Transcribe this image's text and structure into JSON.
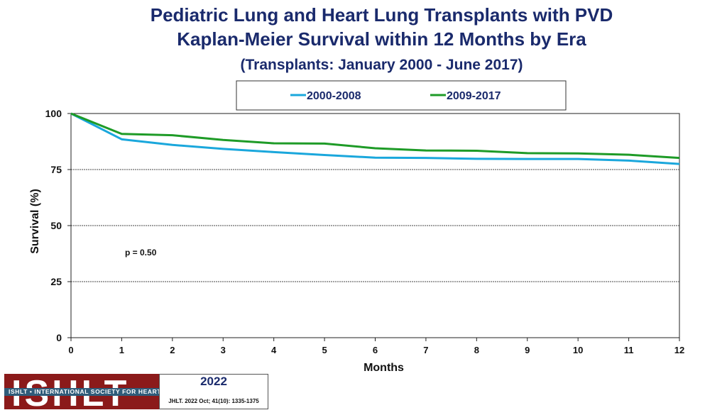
{
  "header": {
    "title_line1": "Pediatric Lung and Heart Lung Transplants with PVD",
    "title_line2": "Kaplan-Meier Survival within 12 Months by Era",
    "subtitle": "(Transplants: January 2000 - June 2017)"
  },
  "chart_data": {
    "type": "line",
    "title": "Pediatric Lung and Heart Lung Transplants with PVD Kaplan-Meier Survival within 12 Months by Era",
    "xlabel": "Months",
    "ylabel": "Survival (%)",
    "xlim": [
      0,
      12
    ],
    "ylim": [
      0,
      100
    ],
    "x_ticks": [
      "0",
      "1",
      "2",
      "3",
      "4",
      "5",
      "6",
      "7",
      "8",
      "9",
      "10",
      "11",
      "12"
    ],
    "y_ticks": [
      "0",
      "25",
      "50",
      "75",
      "100"
    ],
    "gridlines": "horizontal dashed",
    "legend_position": "top",
    "annotation": "p = 0.50",
    "x": [
      0,
      1,
      2,
      3,
      4,
      5,
      6,
      7,
      8,
      9,
      10,
      11,
      12
    ],
    "series": [
      {
        "name": "2000-2008",
        "color": "#1aa7dc",
        "values": [
          100,
          88.5,
          86,
          84.2,
          82.8,
          81.5,
          80.3,
          80.2,
          79.8,
          79.7,
          79.7,
          79,
          77.5
        ]
      },
      {
        "name": "2009-2017",
        "color": "#1e9b27",
        "values": [
          100,
          90.9,
          90.3,
          88.2,
          86.7,
          86.6,
          84.5,
          83.5,
          83.4,
          82.3,
          82.2,
          81.6,
          80.2
        ]
      }
    ]
  },
  "footer": {
    "logo_word": "ISHLT",
    "society_band": "ISHLT • INTERNATIONAL SOCIETY FOR HEART AND LUNG TRANSPLANTATION",
    "year": "2022",
    "citation": "JHLT. 2022 Oct; 41(10): 1335-1375"
  }
}
